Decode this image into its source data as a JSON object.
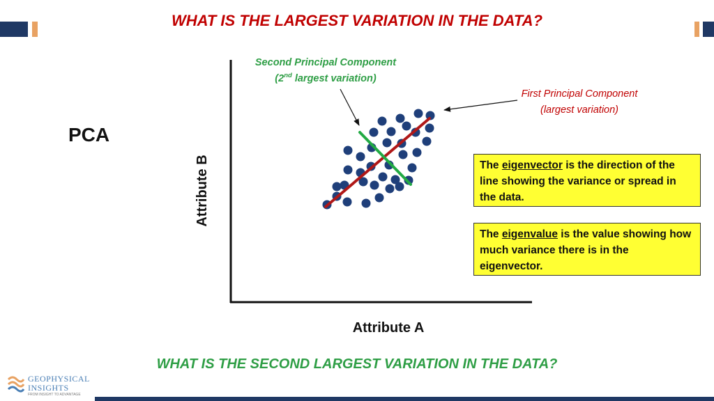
{
  "title_top": "WHAT IS THE LARGEST VARIATION IN THE DATA?",
  "title_bottom": "WHAT IS THE SECOND LARGEST VARIATION IN THE DATA?",
  "pca_label": "PCA",
  "axes": {
    "x_label": "Attribute A",
    "y_label": "Attribute B"
  },
  "annotations": {
    "second_pc_line1": "Second Principal Component",
    "second_pc_line2_pre": "(2",
    "second_pc_line2_sup": "nd",
    "second_pc_line2_post": " largest variation)",
    "first_pc_line1": "First Principal Component",
    "first_pc_line2": "(largest variation)"
  },
  "box_eigenvector": {
    "pre": "The ",
    "term": "eigenvector",
    "post": " is the direction of the line showing the variance or spread in the data."
  },
  "box_eigenvalue": {
    "pre": "The ",
    "term": "eigenvalue",
    "post": " is the value showing how much variance there is in the eigenvector."
  },
  "logo": {
    "line1": "GEOPHYSICAL",
    "line2": "INSIGHTS",
    "tagline": "FROM INSIGHT TO ADVANTAGE"
  },
  "colors": {
    "title_top": "#c00000",
    "title_bottom": "#2e9e45",
    "first_pc_line": "#b01818",
    "second_pc_line": "#22aa44",
    "points": "#1f3f7a",
    "box_fill": "#ffff33",
    "brand_navy": "#1f3864",
    "brand_orange": "#e8a263"
  }
}
